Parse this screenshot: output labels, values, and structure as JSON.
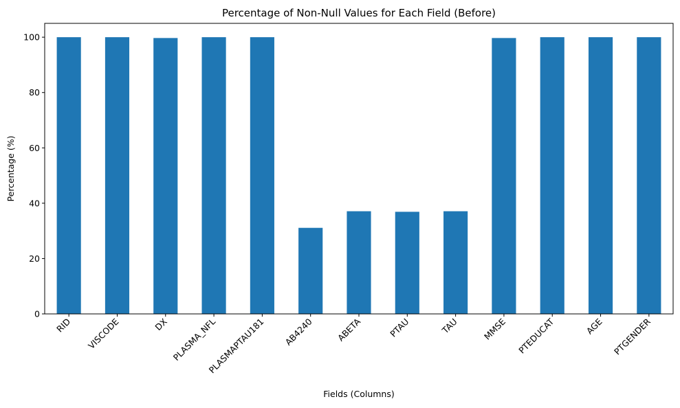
{
  "chart_data": {
    "type": "bar",
    "title": "Percentage of Non-Null Values for Each Field (Before)",
    "xlabel": "Fields (Columns)",
    "ylabel": "Percentage (%)",
    "categories": [
      "RID",
      "VISCODE",
      "DX",
      "PLASMA_NFL",
      "PLASMAPTAU181",
      "AB4240",
      "ABETA",
      "PTAU",
      "TAU",
      "MMSE",
      "PTEDUCAT",
      "AGE",
      "PTGENDER"
    ],
    "values": [
      100,
      100,
      99.7,
      100,
      100,
      31.1,
      37.1,
      36.9,
      37.1,
      99.7,
      100,
      100,
      100
    ],
    "ylim": [
      0,
      105
    ],
    "yticks": [
      0,
      20,
      40,
      60,
      80,
      100
    ],
    "bar_color": "#1f77b4",
    "grid": false,
    "legend": "none"
  }
}
